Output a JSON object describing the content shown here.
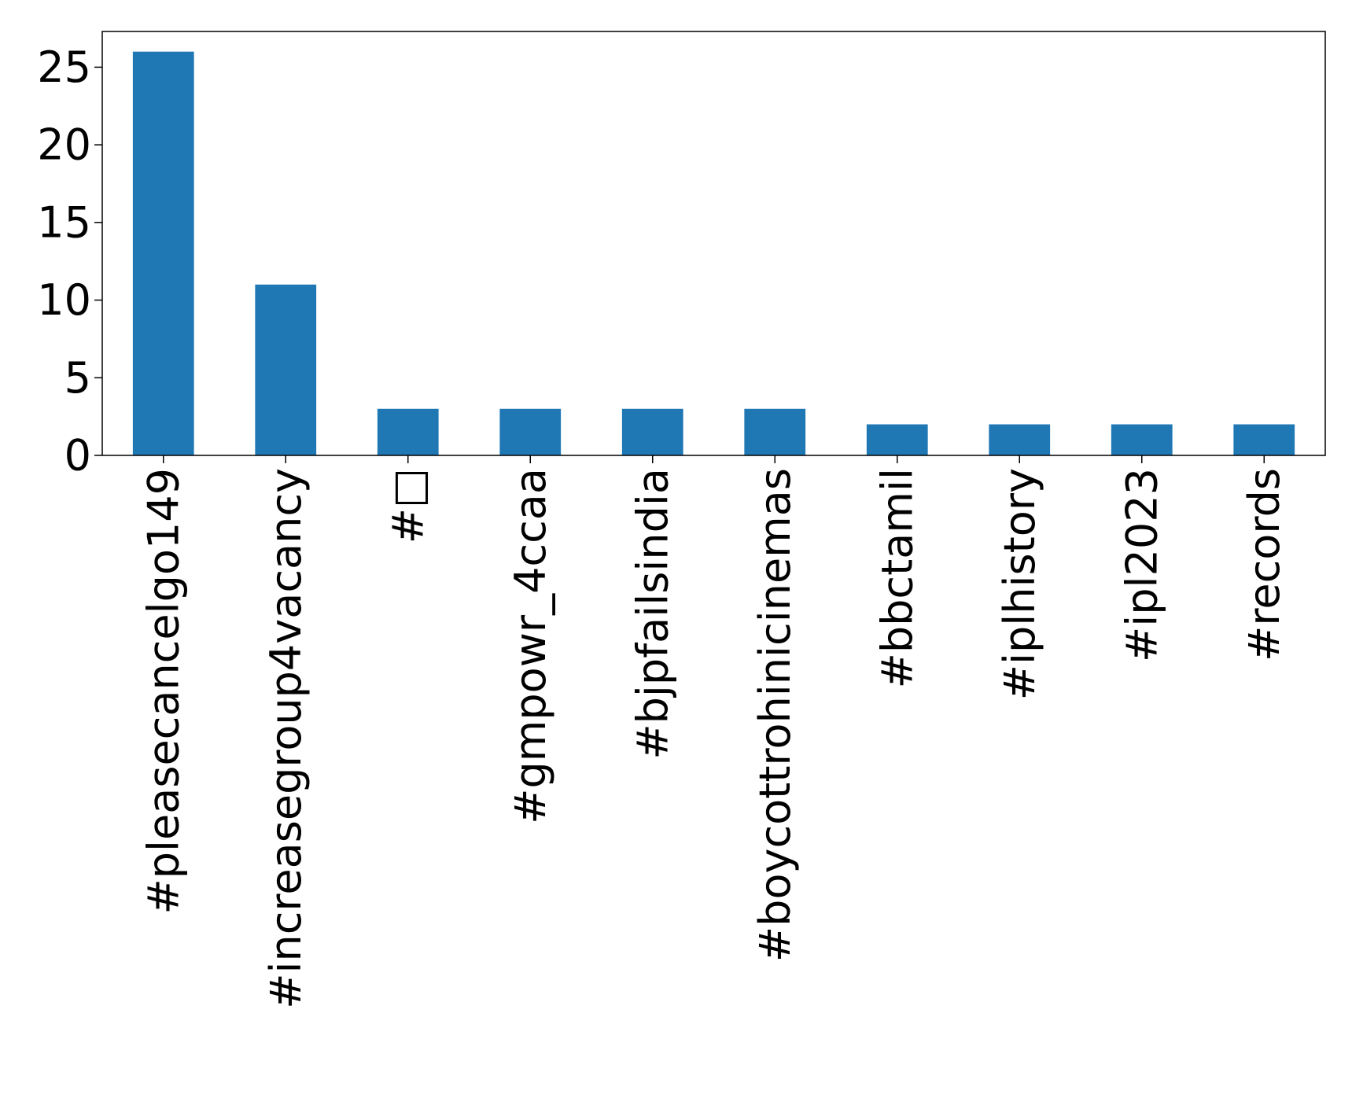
{
  "chart_data": {
    "type": "bar",
    "title": "",
    "xlabel": "",
    "ylabel": "",
    "categories": [
      "#pleasecancelgo149",
      "#increasegroup4vacancy",
      "#□",
      "#gmpowr_4ccaa",
      "#bjpfailsindia",
      "#boycottrohinicinemas",
      "#bbctamil",
      "#iplhistory",
      "#ipl2023",
      "#records"
    ],
    "values": [
      26,
      11,
      3,
      3,
      3,
      3,
      2,
      2,
      2,
      2
    ],
    "ylim": [
      0,
      27.3
    ],
    "yticks": [
      0,
      5,
      10,
      15,
      20,
      25
    ],
    "grid": false,
    "legend": "none",
    "bar_color": "#1f77b4"
  }
}
